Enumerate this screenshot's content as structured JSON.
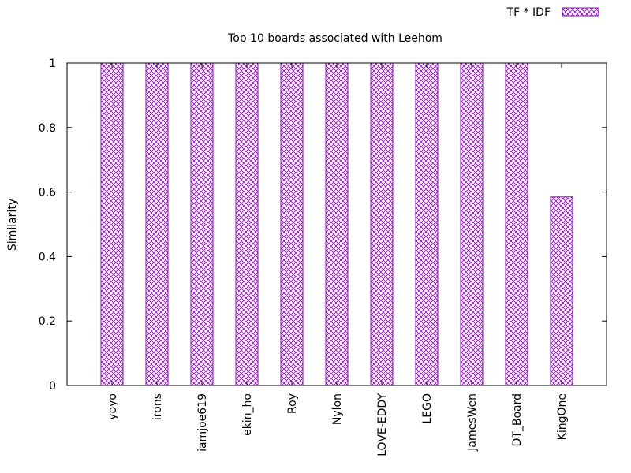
{
  "chart_data": {
    "type": "bar",
    "title": "Top 10 boards associated with Leehom",
    "xlabel": "",
    "ylabel": "Similarity",
    "categories": [
      "yoyo",
      "irons",
      "iamjoe619",
      "ekin_ho",
      "Roy",
      "Nylon",
      "LOVE-EDDY",
      "LEGO",
      "JamesWen",
      "DT_Board",
      "KingOne"
    ],
    "series": [
      {
        "name": "TF * IDF",
        "values": [
          1,
          1,
          1,
          1,
          1,
          1,
          1,
          1,
          1,
          1,
          0.585
        ]
      }
    ],
    "ylim": [
      0,
      1
    ],
    "yticks": [
      "0",
      "0.2",
      "0.4",
      "0.6",
      "0.8",
      "1"
    ],
    "legend_position": "top-right",
    "grid": false,
    "bar_color": "#9400d3",
    "bar_fill": "crosshatch"
  }
}
